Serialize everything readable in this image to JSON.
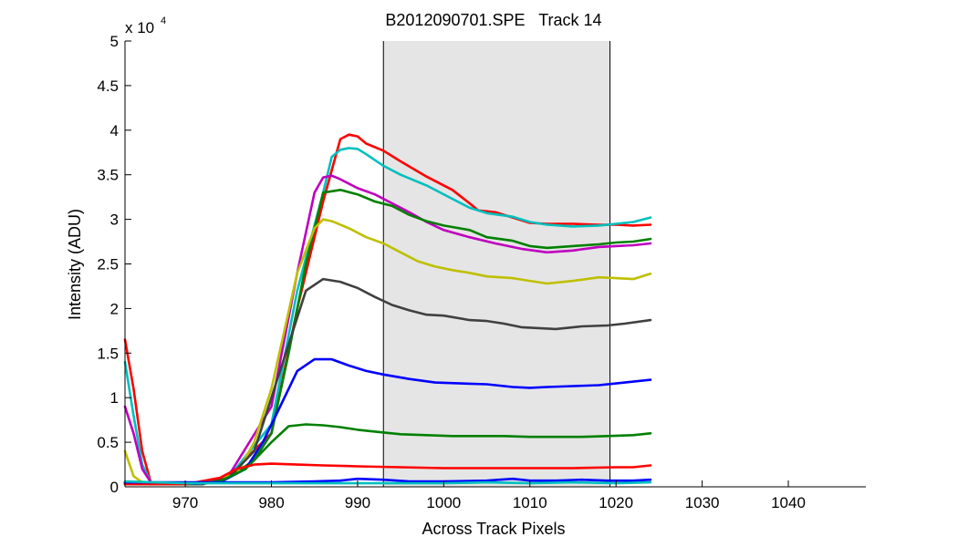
{
  "chart_data": {
    "type": "line",
    "title": "B2012090701.SPE   Track 14",
    "xlabel": "Across Track Pixels",
    "ylabel": "Intensity (ADU)",
    "y_exponent_label": "x 10",
    "y_exponent_power": "4",
    "xlim": [
      963,
      1049
    ],
    "ylim": [
      0,
      50000
    ],
    "xticks": [
      970,
      980,
      990,
      1000,
      1010,
      1020,
      1030,
      1040
    ],
    "xtick_labels": [
      "970",
      "980",
      "990",
      "1000",
      "1010",
      "1020",
      "1030",
      "1040"
    ],
    "yticks": [
      0,
      5000,
      10000,
      15000,
      20000,
      25000,
      30000,
      35000,
      40000,
      45000,
      50000
    ],
    "ytick_labels": [
      "0",
      "0.5",
      "1",
      "1.5",
      "2",
      "2.5",
      "3",
      "3.5",
      "4",
      "4.5",
      "5"
    ],
    "grid": false,
    "legend": "none",
    "shaded_region": {
      "x": [
        993,
        1019.3
      ],
      "color": "#e5e5e5",
      "edge_color": "#000000"
    },
    "series": [
      {
        "color": "#ff0000",
        "points": [
          [
            963,
            16500
          ],
          [
            964,
            11000
          ],
          [
            965,
            4000
          ],
          [
            966,
            500
          ],
          [
            968,
            300
          ],
          [
            970,
            300
          ],
          [
            972,
            600
          ],
          [
            975,
            1200
          ],
          [
            980,
            6000
          ],
          [
            983,
            20000
          ],
          [
            986,
            32000
          ],
          [
            988,
            39000
          ],
          [
            989,
            39500
          ],
          [
            990,
            39300
          ],
          [
            991,
            38500
          ],
          [
            993,
            37700
          ],
          [
            995,
            36500
          ],
          [
            998,
            34800
          ],
          [
            1001,
            33300
          ],
          [
            1003,
            31800
          ],
          [
            1004,
            31000
          ],
          [
            1006,
            30800
          ],
          [
            1008,
            30200
          ],
          [
            1010,
            29600
          ],
          [
            1012,
            29500
          ],
          [
            1015,
            29500
          ],
          [
            1018,
            29400
          ],
          [
            1020,
            29400
          ],
          [
            1022,
            29300
          ],
          [
            1024,
            29400
          ]
        ]
      },
      {
        "color": "#00bfbf",
        "points": [
          [
            963,
            14000
          ],
          [
            964,
            8000
          ],
          [
            965,
            2500
          ],
          [
            966,
            500
          ],
          [
            968,
            300
          ],
          [
            970,
            300
          ],
          [
            972,
            400
          ],
          [
            975,
            1000
          ],
          [
            980,
            7000
          ],
          [
            983,
            22000
          ],
          [
            986,
            33000
          ],
          [
            987,
            37000
          ],
          [
            988,
            37800
          ],
          [
            989,
            38000
          ],
          [
            990,
            37900
          ],
          [
            991,
            37300
          ],
          [
            993,
            36000
          ],
          [
            995,
            35000
          ],
          [
            998,
            33800
          ],
          [
            1001,
            32300
          ],
          [
            1003,
            31300
          ],
          [
            1005,
            30700
          ],
          [
            1008,
            30300
          ],
          [
            1010,
            29700
          ],
          [
            1012,
            29400
          ],
          [
            1015,
            29200
          ],
          [
            1018,
            29300
          ],
          [
            1020,
            29500
          ],
          [
            1022,
            29700
          ],
          [
            1024,
            30200
          ]
        ]
      },
      {
        "color": "#bf00bf",
        "points": [
          [
            963,
            9000
          ],
          [
            964,
            6000
          ],
          [
            965,
            2000
          ],
          [
            966,
            500
          ],
          [
            968,
            300
          ],
          [
            970,
            300
          ],
          [
            972,
            400
          ],
          [
            975,
            1200
          ],
          [
            980,
            9000
          ],
          [
            983,
            24000
          ],
          [
            985,
            33000
          ],
          [
            986,
            34700
          ],
          [
            987,
            34900
          ],
          [
            988,
            34500
          ],
          [
            990,
            33500
          ],
          [
            992,
            32800
          ],
          [
            994,
            31800
          ],
          [
            996,
            30800
          ],
          [
            998,
            29700
          ],
          [
            1000,
            28800
          ],
          [
            1003,
            28000
          ],
          [
            1006,
            27300
          ],
          [
            1009,
            26700
          ],
          [
            1012,
            26300
          ],
          [
            1015,
            26500
          ],
          [
            1018,
            26900
          ],
          [
            1020,
            27000
          ],
          [
            1022,
            27100
          ],
          [
            1024,
            27300
          ]
        ]
      },
      {
        "color": "#008000",
        "points": [
          [
            963,
            500
          ],
          [
            965,
            400
          ],
          [
            968,
            300
          ],
          [
            972,
            300
          ],
          [
            975,
            1000
          ],
          [
            978,
            3000
          ],
          [
            980,
            6000
          ],
          [
            982,
            15000
          ],
          [
            984,
            25000
          ],
          [
            986,
            33000
          ],
          [
            988,
            33300
          ],
          [
            990,
            32800
          ],
          [
            992,
            32000
          ],
          [
            994,
            31500
          ],
          [
            996,
            30500
          ],
          [
            998,
            29800
          ],
          [
            1000,
            29300
          ],
          [
            1003,
            28800
          ],
          [
            1005,
            28000
          ],
          [
            1008,
            27600
          ],
          [
            1010,
            27000
          ],
          [
            1012,
            26800
          ],
          [
            1015,
            27000
          ],
          [
            1018,
            27200
          ],
          [
            1020,
            27400
          ],
          [
            1022,
            27500
          ],
          [
            1024,
            27800
          ]
        ]
      },
      {
        "color": "#bfbf00",
        "points": [
          [
            963,
            4000
          ],
          [
            964,
            1200
          ],
          [
            965,
            500
          ],
          [
            968,
            300
          ],
          [
            970,
            300
          ],
          [
            973,
            600
          ],
          [
            976,
            1500
          ],
          [
            978,
            5000
          ],
          [
            980,
            11000
          ],
          [
            983,
            24000
          ],
          [
            985,
            29000
          ],
          [
            986,
            30000
          ],
          [
            987,
            29800
          ],
          [
            989,
            29000
          ],
          [
            991,
            28000
          ],
          [
            993,
            27300
          ],
          [
            995,
            26300
          ],
          [
            997,
            25300
          ],
          [
            999,
            24700
          ],
          [
            1001,
            24300
          ],
          [
            1003,
            24000
          ],
          [
            1005,
            23600
          ],
          [
            1008,
            23400
          ],
          [
            1010,
            23100
          ],
          [
            1012,
            22800
          ],
          [
            1015,
            23100
          ],
          [
            1018,
            23500
          ],
          [
            1020,
            23400
          ],
          [
            1022,
            23300
          ],
          [
            1024,
            23900
          ]
        ]
      },
      {
        "color": "#404040",
        "points": [
          [
            963,
            500
          ],
          [
            966,
            400
          ],
          [
            968,
            300
          ],
          [
            972,
            300
          ],
          [
            975,
            1000
          ],
          [
            978,
            4000
          ],
          [
            980,
            10000
          ],
          [
            982,
            16000
          ],
          [
            984,
            22000
          ],
          [
            986,
            23300
          ],
          [
            988,
            23000
          ],
          [
            990,
            22300
          ],
          [
            992,
            21300
          ],
          [
            994,
            20400
          ],
          [
            996,
            19800
          ],
          [
            998,
            19300
          ],
          [
            1000,
            19200
          ],
          [
            1003,
            18700
          ],
          [
            1005,
            18600
          ],
          [
            1007,
            18300
          ],
          [
            1009,
            17900
          ],
          [
            1011,
            17800
          ],
          [
            1013,
            17700
          ],
          [
            1016,
            18000
          ],
          [
            1019,
            18100
          ],
          [
            1021,
            18300
          ],
          [
            1024,
            18700
          ]
        ]
      },
      {
        "color": "#0000ff",
        "points": [
          [
            963,
            400
          ],
          [
            966,
            300
          ],
          [
            970,
            300
          ],
          [
            974,
            500
          ],
          [
            977,
            2000
          ],
          [
            979,
            5000
          ],
          [
            981,
            9000
          ],
          [
            983,
            13000
          ],
          [
            985,
            14300
          ],
          [
            987,
            14300
          ],
          [
            989,
            13600
          ],
          [
            991,
            13000
          ],
          [
            993,
            12600
          ],
          [
            996,
            12100
          ],
          [
            999,
            11700
          ],
          [
            1002,
            11600
          ],
          [
            1005,
            11500
          ],
          [
            1008,
            11200
          ],
          [
            1010,
            11100
          ],
          [
            1012,
            11200
          ],
          [
            1015,
            11300
          ],
          [
            1018,
            11400
          ],
          [
            1020,
            11600
          ],
          [
            1022,
            11800
          ],
          [
            1024,
            12000
          ]
        ]
      },
      {
        "color": "#008000",
        "points": [
          [
            963,
            300
          ],
          [
            966,
            300
          ],
          [
            970,
            300
          ],
          [
            974,
            600
          ],
          [
            977,
            2000
          ],
          [
            980,
            5000
          ],
          [
            982,
            6800
          ],
          [
            984,
            7000
          ],
          [
            986,
            6900
          ],
          [
            988,
            6700
          ],
          [
            990,
            6400
          ],
          [
            992,
            6200
          ],
          [
            995,
            5900
          ],
          [
            998,
            5800
          ],
          [
            1001,
            5700
          ],
          [
            1004,
            5700
          ],
          [
            1007,
            5700
          ],
          [
            1010,
            5600
          ],
          [
            1013,
            5600
          ],
          [
            1016,
            5600
          ],
          [
            1019,
            5700
          ],
          [
            1022,
            5800
          ],
          [
            1024,
            6000
          ]
        ]
      },
      {
        "color": "#ff0000",
        "points": [
          [
            963,
            300
          ],
          [
            966,
            300
          ],
          [
            970,
            300
          ],
          [
            974,
            1000
          ],
          [
            976,
            2000
          ],
          [
            978,
            2500
          ],
          [
            980,
            2600
          ],
          [
            983,
            2500
          ],
          [
            986,
            2400
          ],
          [
            990,
            2300
          ],
          [
            995,
            2200
          ],
          [
            1000,
            2100
          ],
          [
            1005,
            2100
          ],
          [
            1010,
            2100
          ],
          [
            1015,
            2100
          ],
          [
            1020,
            2200
          ],
          [
            1022,
            2200
          ],
          [
            1024,
            2400
          ]
        ]
      },
      {
        "color": "#0000ff",
        "points": [
          [
            963,
            500
          ],
          [
            970,
            500
          ],
          [
            980,
            500
          ],
          [
            985,
            600
          ],
          [
            988,
            700
          ],
          [
            990,
            900
          ],
          [
            993,
            800
          ],
          [
            996,
            600
          ],
          [
            1000,
            600
          ],
          [
            1005,
            700
          ],
          [
            1008,
            900
          ],
          [
            1010,
            700
          ],
          [
            1013,
            700
          ],
          [
            1016,
            800
          ],
          [
            1019,
            700
          ],
          [
            1022,
            700
          ],
          [
            1024,
            800
          ]
        ]
      },
      {
        "color": "#00bfbf",
        "points": [
          [
            963,
            600
          ],
          [
            970,
            400
          ],
          [
            980,
            400
          ],
          [
            985,
            400
          ],
          [
            990,
            400
          ],
          [
            995,
            400
          ],
          [
            1000,
            400
          ],
          [
            1005,
            500
          ],
          [
            1010,
            400
          ],
          [
            1015,
            500
          ],
          [
            1020,
            400
          ],
          [
            1024,
            500
          ]
        ]
      }
    ]
  }
}
